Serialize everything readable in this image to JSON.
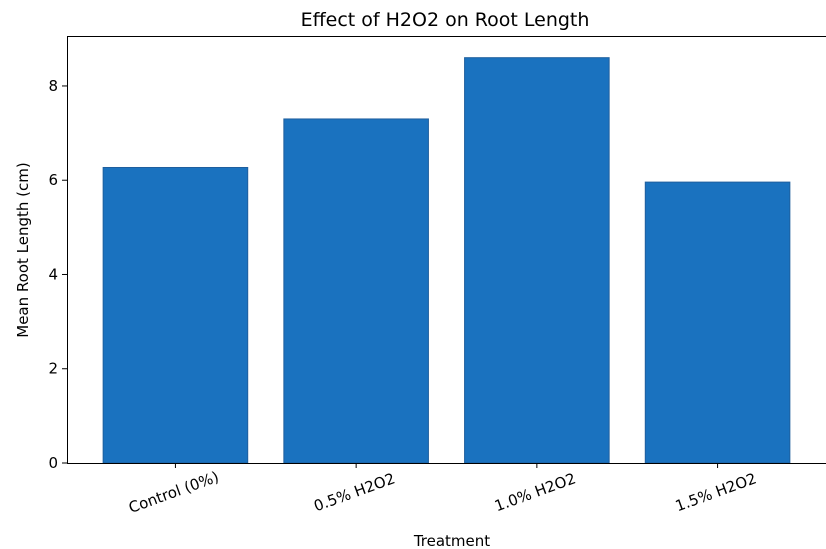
{
  "chart_data": {
    "type": "bar",
    "title": "Effect of H2O2 on Root Length",
    "xlabel": "Treatment",
    "ylabel": "Mean Root Length (cm)",
    "categories": [
      "Control (0%)",
      "0.5% H2O2",
      "1.0% H2O2",
      "1.5% H2O2"
    ],
    "values": [
      6.27,
      7.3,
      8.6,
      5.96
    ],
    "ylim": [
      0,
      9.06
    ],
    "yticks": [
      0,
      2,
      4,
      6,
      8
    ],
    "ytick_labels": [
      "0",
      "2",
      "4",
      "6",
      "8"
    ],
    "grid": false,
    "legend": "none",
    "colors": {
      "bar": "#1a72bf",
      "bar_edge": "#1f5f9e",
      "axis": "#000000"
    }
  }
}
